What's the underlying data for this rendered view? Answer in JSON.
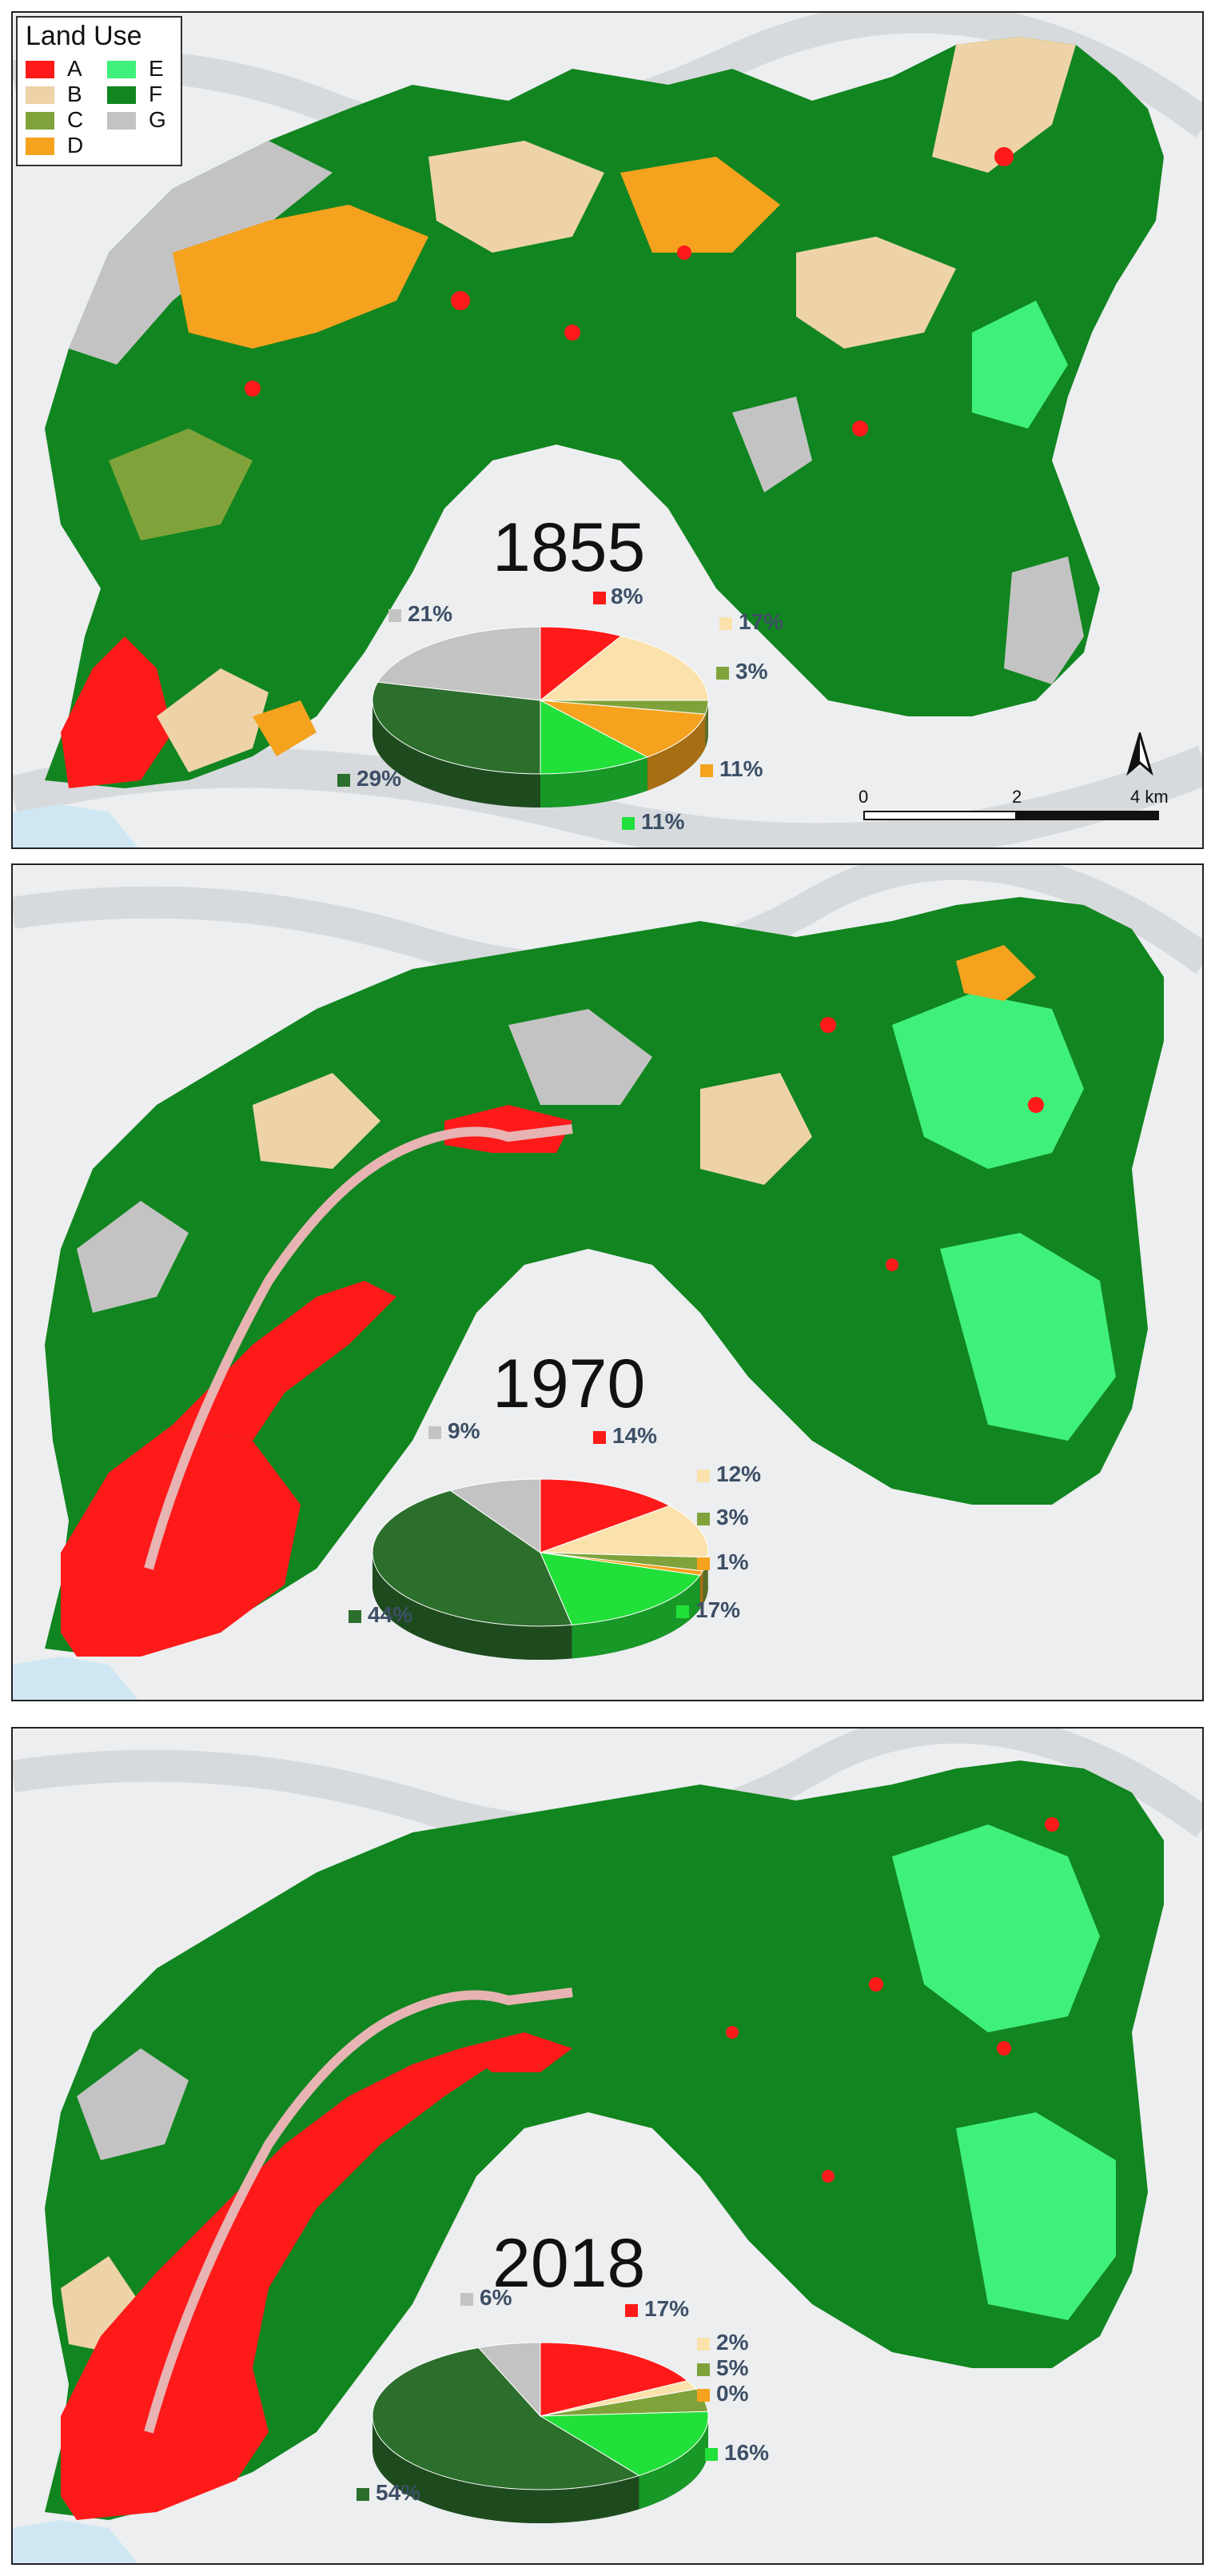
{
  "legend": {
    "title": "Land Use",
    "items": [
      {
        "code": "A",
        "color": "#ff1a1a"
      },
      {
        "code": "B",
        "color": "#eed3a8"
      },
      {
        "code": "C",
        "color": "#7fa33a"
      },
      {
        "code": "D",
        "color": "#f5a21e"
      },
      {
        "code": "E",
        "color": "#3ff07a"
      },
      {
        "code": "F",
        "color": "#11851f"
      },
      {
        "code": "G",
        "color": "#c3c3c3"
      }
    ]
  },
  "scale_bar": {
    "ticks": [
      "0",
      "2",
      "4 km"
    ]
  },
  "maps": [
    {
      "year": "1855",
      "pie": [
        {
          "code": "A",
          "value": 8,
          "label": "8%",
          "color": "#ff1a1a"
        },
        {
          "code": "B",
          "value": 17,
          "label": "17%",
          "color": "#fbe2ad"
        },
        {
          "code": "C",
          "value": 3,
          "label": "3%",
          "color": "#7fa33a"
        },
        {
          "code": "D",
          "value": 11,
          "label": "11%",
          "color": "#f5a21e"
        },
        {
          "code": "E",
          "value": 11,
          "label": "11%",
          "color": "#22e03a"
        },
        {
          "code": "F",
          "value": 29,
          "label": "29%",
          "color": "#2c6e2c"
        },
        {
          "code": "G",
          "value": 21,
          "label": "21%",
          "color": "#c3c3c3"
        }
      ]
    },
    {
      "year": "1970",
      "pie": [
        {
          "code": "A",
          "value": 14,
          "label": "14%",
          "color": "#ff1a1a"
        },
        {
          "code": "B",
          "value": 12,
          "label": "12%",
          "color": "#fbe2ad"
        },
        {
          "code": "C",
          "value": 3,
          "label": "3%",
          "color": "#7fa33a"
        },
        {
          "code": "D",
          "value": 1,
          "label": "1%",
          "color": "#f5a21e"
        },
        {
          "code": "E",
          "value": 17,
          "label": "17%",
          "color": "#22e03a"
        },
        {
          "code": "F",
          "value": 44,
          "label": "44%",
          "color": "#2c6e2c"
        },
        {
          "code": "G",
          "value": 9,
          "label": "9%",
          "color": "#c3c3c3"
        }
      ]
    },
    {
      "year": "2018",
      "pie": [
        {
          "code": "A",
          "value": 17,
          "label": "17%",
          "color": "#ff1a1a"
        },
        {
          "code": "B",
          "value": 2,
          "label": "2%",
          "color": "#fbe2ad"
        },
        {
          "code": "C",
          "value": 5,
          "label": "5%",
          "color": "#7fa33a"
        },
        {
          "code": "D",
          "value": 0,
          "label": "0%",
          "color": "#f5a21e"
        },
        {
          "code": "E",
          "value": 16,
          "label": "16%",
          "color": "#22e03a"
        },
        {
          "code": "F",
          "value": 54,
          "label": "54%",
          "color": "#2c6e2c"
        },
        {
          "code": "G",
          "value": 6,
          "label": "6%",
          "color": "#c3c3c3"
        }
      ]
    }
  ]
}
